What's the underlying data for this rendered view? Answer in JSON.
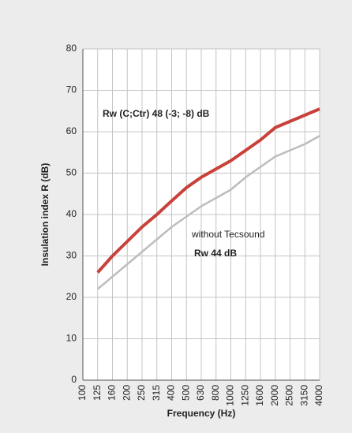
{
  "chart_data": {
    "type": "line",
    "ylabel": "Insulation index R (dB)",
    "xlabel": "Frequency (Hz)",
    "categories": [
      "100",
      "125",
      "160",
      "200",
      "250",
      "315",
      "400",
      "500",
      "630",
      "800",
      "1000",
      "1250",
      "1600",
      "2000",
      "2500",
      "3150",
      "4000"
    ],
    "series": [
      {
        "color": "#c8413a",
        "values": [
          null,
          26,
          30,
          33.5,
          37,
          40,
          43.3,
          46.5,
          49,
          51,
          53,
          55.5,
          58,
          61,
          62.5,
          64,
          65.5
        ]
      },
      {
        "color": "#bdbdbd",
        "values": [
          null,
          22,
          25,
          28,
          31,
          34,
          37,
          39.5,
          42,
          44,
          46,
          49,
          51.5,
          54,
          55.5,
          57,
          59
        ]
      }
    ],
    "annotations": [
      {
        "text": "Rw (C;Ctr) 48 (-3; -8) dB",
        "color": "#c8413a"
      },
      {
        "text": "without Tecsound",
        "color": "#222222"
      },
      {
        "text": "Rw 44 dB",
        "color": "#222222"
      }
    ],
    "ylim": [
      0,
      80
    ],
    "yticks": [
      0,
      10,
      20,
      30,
      40,
      50,
      60,
      70,
      80
    ],
    "grid": true
  }
}
